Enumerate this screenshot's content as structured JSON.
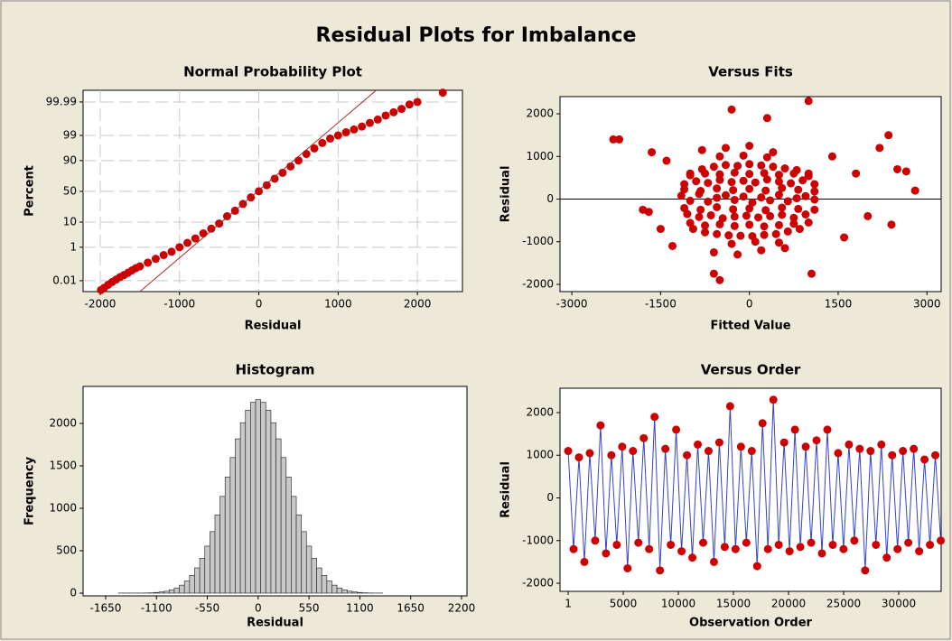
{
  "title": "Residual Plots for Imbalance",
  "chart_data": [
    {
      "type": "scatter",
      "title": "Normal Probability Plot",
      "x_label": "Residual",
      "y_label": "Percent",
      "yscale": "probability",
      "grid": true,
      "color": "#cc0000",
      "x": [
        -1990,
        -1950,
        -1900,
        -1850,
        -1800,
        -1750,
        -1700,
        -1650,
        -1600,
        -1550,
        -1500,
        -1400,
        -1300,
        -1200,
        -1100,
        -1000,
        -900,
        -800,
        -700,
        -600,
        -500,
        -400,
        -300,
        -200,
        -100,
        0,
        100,
        200,
        300,
        400,
        500,
        600,
        700,
        800,
        900,
        1000,
        1100,
        1200,
        1300,
        1400,
        1500,
        1600,
        1700,
        1800,
        1900,
        2000,
        2320
      ],
      "y": [
        0.002,
        0.003,
        0.005,
        0.008,
        0.012,
        0.018,
        0.025,
        0.035,
        0.05,
        0.07,
        0.09,
        0.15,
        0.25,
        0.4,
        0.6,
        1,
        1.6,
        2.5,
        4,
        6,
        9,
        15,
        21,
        30,
        40,
        50,
        60,
        70,
        78,
        85,
        90,
        94,
        96.3,
        97.8,
        98.6,
        99,
        99.3,
        99.5,
        99.65,
        99.78,
        99.86,
        99.92,
        99.95,
        99.97,
        99.985,
        99.99,
        99.998
      ],
      "reference_line": {
        "x": [
          -1500,
          1480
        ],
        "y": [
          0.0015,
          99.9987
        ],
        "color": "#a52a2a"
      },
      "xlim": [
        -2216,
        2568
      ],
      "xticks": [
        -2000,
        -1000,
        0,
        1000,
        2000
      ],
      "ylim": [
        0.0015,
        99.9987
      ],
      "yticks": [
        0.01,
        1,
        10,
        50,
        90,
        99,
        99.99
      ]
    },
    {
      "type": "scatter",
      "title": "Versus Fits",
      "x_label": "Fitted Value",
      "y_label": "Residual",
      "grid": false,
      "color": "#cc0000",
      "hline": 0,
      "x": [
        -1150,
        -1000,
        -850,
        -700,
        -550,
        -400,
        -250,
        -100,
        50,
        200,
        350,
        500,
        650,
        800,
        950,
        1100,
        -1100,
        -900,
        -700,
        -500,
        -300,
        -100,
        100,
        300,
        500,
        700,
        900,
        1100,
        -1050,
        -850,
        -650,
        -450,
        -250,
        -50,
        150,
        350,
        550,
        750,
        950,
        -1000,
        -800,
        -600,
        -400,
        -200,
        0,
        200,
        400,
        600,
        800,
        1000,
        -950,
        -750,
        -550,
        -350,
        -150,
        50,
        250,
        450,
        650,
        850,
        -800,
        -600,
        -400,
        -200,
        0,
        200,
        400,
        600,
        -1100,
        -825,
        -550,
        -275,
        0,
        275,
        550,
        825,
        1100,
        -1100,
        -825,
        -550,
        -275,
        0,
        275,
        550,
        825,
        1100,
        -1000,
        -750,
        -500,
        -250,
        0,
        250,
        500,
        750,
        1000,
        -1000,
        -750,
        -500,
        -250,
        0,
        250,
        500,
        750,
        1000,
        -2300,
        -2200,
        -1800,
        -1650,
        -1500,
        -1400,
        -1300,
        1400,
        1600,
        1800,
        2000,
        2200,
        2350,
        2500,
        2800,
        2650,
        -300,
        -600,
        300,
        1000,
        -500,
        1050,
        -1700,
        2400,
        -500,
        -300,
        -100,
        100,
        300,
        500
      ],
      "y": [
        80,
        -40,
        120,
        -60,
        30,
        90,
        -20,
        60,
        -80,
        40,
        -30,
        100,
        -50,
        20,
        70,
        -10,
        350,
        420,
        380,
        450,
        400,
        430,
        390,
        460,
        410,
        370,
        440,
        350,
        -350,
        -420,
        -380,
        -450,
        -410,
        -390,
        -430,
        -400,
        -370,
        -440,
        -360,
        600,
        700,
        760,
        800,
        780,
        820,
        790,
        760,
        720,
        680,
        600,
        -700,
        -780,
        -820,
        -850,
        -860,
        -870,
        -840,
        -820,
        -760,
        -700,
        1150,
        -1250,
        1200,
        -1300,
        1250,
        -1200,
        1100,
        -1150,
        230,
        190,
        250,
        210,
        240,
        200,
        260,
        220,
        180,
        -210,
        -250,
        -190,
        -240,
        -220,
        -260,
        -200,
        -230,
        -250,
        560,
        600,
        580,
        620,
        590,
        610,
        570,
        600,
        540,
        -560,
        -620,
        -590,
        -630,
        -600,
        -640,
        -610,
        -580,
        -550,
        1400,
        1400,
        -250,
        1100,
        -700,
        900,
        -1100,
        1000,
        -900,
        600,
        -400,
        1200,
        1500,
        700,
        200,
        650,
        2100,
        -1750,
        1900,
        2300,
        -1900,
        -1750,
        -300,
        -600,
        1000,
        -1050,
        1020,
        -1000,
        980,
        -1020
      ],
      "xlim": [
        -3200,
        3240
      ],
      "xticks": [
        -3000,
        -1500,
        0,
        1500,
        3000
      ],
      "ylim": [
        -2170,
        2404
      ],
      "yticks": [
        -2000,
        -1000,
        0,
        1000,
        2000
      ]
    },
    {
      "type": "histogram",
      "title": "Histogram",
      "x_label": "Residual",
      "y_label": "Frequency",
      "grid": false,
      "color": "#c8c8c8",
      "bins": [
        -1512.5,
        -1457.5,
        -1402.5,
        -1347.5,
        -1292.5,
        -1237.5,
        -1182.5,
        -1127.5,
        -1072.5,
        -1017.5,
        -962.5,
        -907.5,
        -852.5,
        -797.5,
        -742.5,
        -687.5,
        -632.5,
        -577.5,
        -522.5,
        -467.5,
        -412.5,
        -357.5,
        -302.5,
        -247.5,
        -192.5,
        -137.5,
        -82.5,
        -27.5,
        27.5,
        82.5,
        137.5,
        192.5,
        247.5,
        302.5,
        357.5,
        412.5,
        467.5,
        522.5,
        577.5,
        632.5,
        687.5,
        742.5,
        797.5,
        852.5,
        907.5,
        962.5,
        1017.5,
        1072.5,
        1127.5,
        1182.5,
        1237.5,
        1292.5,
        1347.5
      ],
      "counts": [
        1,
        1,
        1,
        1,
        1,
        2,
        4,
        8,
        14,
        23,
        38,
        61,
        94,
        143,
        209,
        297,
        411,
        554,
        725,
        922,
        1140,
        1368,
        1598,
        1818,
        2008,
        2155,
        2248,
        2280,
        2248,
        2155,
        2008,
        1818,
        1598,
        1368,
        1140,
        922,
        725,
        554,
        411,
        297,
        209,
        143,
        94,
        61,
        38,
        23,
        14,
        8,
        4,
        2,
        1,
        1
      ],
      "xlim": [
        -1894,
        2259
      ],
      "xticks": [
        -1650,
        -1100,
        -550,
        0,
        550,
        1100,
        1650,
        2200
      ],
      "ylim": [
        -32,
        2436
      ],
      "yticks": [
        0,
        500,
        1000,
        1500,
        2000
      ]
    },
    {
      "type": "line",
      "title": "Versus Order",
      "x_label": "Observation Order",
      "y_label": "Residual",
      "grid": false,
      "color": "#cc0000",
      "line_color": "#3344cc",
      "x": [
        1,
        491,
        981,
        1471,
        1961,
        2451,
        2941,
        3431,
        3921,
        4411,
        4901,
        5391,
        5881,
        6371,
        6861,
        7351,
        7841,
        8331,
        8821,
        9311,
        9801,
        10291,
        10781,
        11271,
        11761,
        12251,
        12741,
        13231,
        13721,
        14211,
        14701,
        15191,
        15681,
        16171,
        16661,
        17151,
        17641,
        18131,
        18621,
        19111,
        19601,
        20091,
        20581,
        21071,
        21561,
        22051,
        22541,
        23031,
        23521,
        24011,
        24501,
        24991,
        25481,
        25971,
        26461,
        26951,
        27441,
        27931,
        28421,
        28911,
        29401,
        29891,
        30381,
        30871,
        31361,
        31851,
        32341,
        32831,
        33321,
        33811
      ],
      "y": [
        1100,
        -1200,
        950,
        -1500,
        1050,
        -1000,
        1700,
        -1300,
        1000,
        -1100,
        1200,
        -1650,
        1100,
        -1050,
        1400,
        -1200,
        1900,
        -1700,
        1150,
        -1100,
        1600,
        -1250,
        1000,
        -1400,
        1250,
        -1050,
        1100,
        -1500,
        1300,
        -1150,
        2150,
        -1200,
        1200,
        -1050,
        1100,
        -1600,
        1750,
        -1200,
        2300,
        -1100,
        1300,
        -1250,
        1600,
        -1150,
        1200,
        -1050,
        1350,
        -1300,
        1600,
        -1100,
        1050,
        -1200,
        1250,
        -1000,
        1150,
        -1700,
        1100,
        -1100,
        1250,
        -1400,
        1000,
        -1200,
        1100,
        -1050,
        1150,
        -1250,
        900,
        -1100,
        1000,
        -1000
      ],
      "xlim": [
        -740,
        33850
      ],
      "xticks": [
        1,
        5000,
        10000,
        15000,
        20000,
        25000,
        30000
      ],
      "ylim": [
        -2190,
        2571
      ],
      "yticks": [
        -2000,
        -1000,
        0,
        1000,
        2000
      ]
    }
  ]
}
